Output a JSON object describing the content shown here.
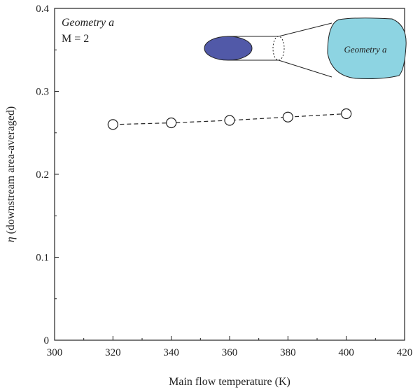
{
  "chart_data": {
    "type": "scatter",
    "title": "",
    "xlabel": "Main flow temperature (K)",
    "ylabel_symbol": "η",
    "ylabel_text": " (downstream area-averaged)",
    "xlim": [
      300,
      420
    ],
    "ylim": [
      0,
      0.4
    ],
    "xticks": [
      "300",
      "320",
      "340",
      "360",
      "380",
      "400",
      "420"
    ],
    "yticks": [
      "0",
      "0.1",
      "0.2",
      "0.3",
      "0.4"
    ],
    "grid": false,
    "series": [
      {
        "x": [
          320,
          340,
          360,
          380,
          400
        ],
        "y": [
          0.26,
          0.262,
          0.265,
          0.269,
          0.273
        ],
        "marker": "open-circle",
        "line": "dashed"
      }
    ],
    "annotations": {
      "geometry_label": "Geometry a",
      "blowing_ratio": "M = 2",
      "inset_label": "Geometry a"
    },
    "colors": {
      "inlet_fill": "#5159a8",
      "outlet_fill": "#8dd4e2",
      "line": "#222222"
    }
  }
}
